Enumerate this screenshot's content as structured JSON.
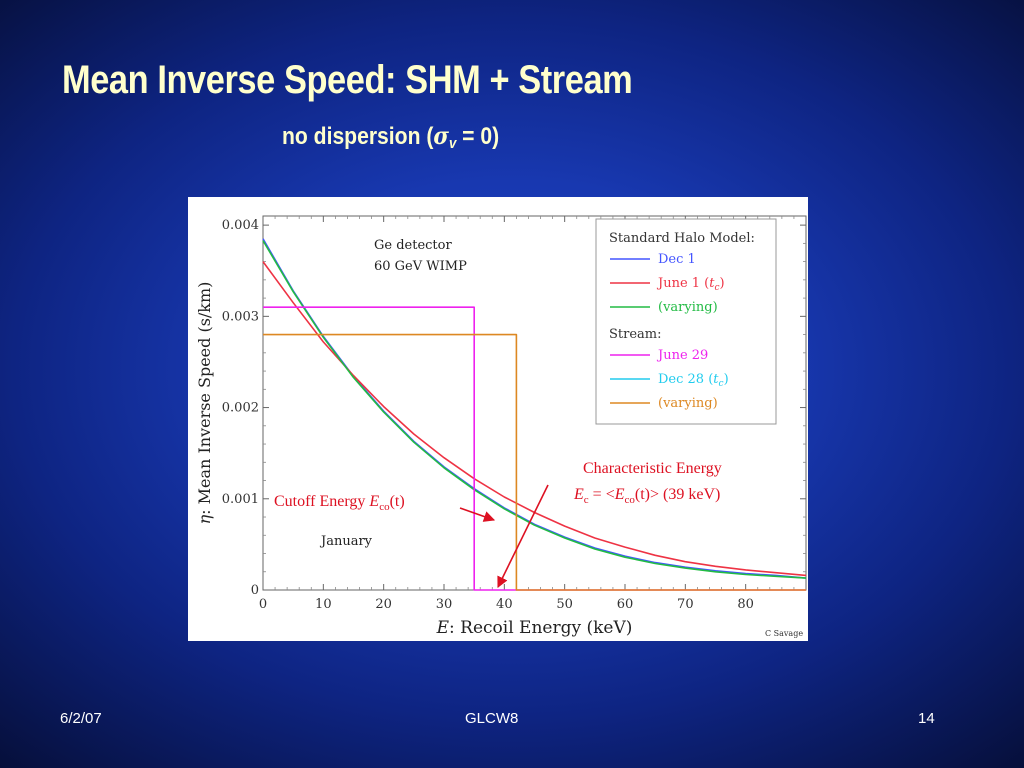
{
  "slide": {
    "title": "Mean Inverse Speed: SHM + Stream",
    "subtitle_prefix": "no dispersion (",
    "subtitle_sigma": "σ",
    "subtitle_sub": "v",
    "subtitle_suffix": " = 0)",
    "footer_date": "6/2/07",
    "footer_center": "GLCW8",
    "footer_page": "14"
  },
  "chart_data": {
    "type": "line",
    "xlabel_var": "E",
    "xlabel_text": ":  Recoil Energy (keV)",
    "ylabel_var": "η",
    "ylabel_text": ":  Mean Inverse Speed (s/km)",
    "xlim": [
      0,
      90
    ],
    "ylim": [
      0,
      0.0041
    ],
    "x_ticks": [
      "0",
      "10",
      "20",
      "30",
      "40",
      "50",
      "60",
      "70",
      "80"
    ],
    "y_ticks": [
      "0",
      "0.001",
      "0.002",
      "0.003",
      "0.004"
    ],
    "grid": false,
    "legend_position": "top-right",
    "legend": {
      "shm_heading": "Standard Halo Model:",
      "stream_heading": "Stream:",
      "entries": [
        {
          "group": "shm",
          "label": "Dec 1",
          "color": "#4455ff"
        },
        {
          "group": "shm",
          "label": "June 1 (",
          "tc": true,
          "color": "#ee3344"
        },
        {
          "group": "shm",
          "label": "(varying)",
          "color": "#22bb44"
        },
        {
          "group": "stream",
          "label": "June 29",
          "color": "#ee22ee"
        },
        {
          "group": "stream",
          "label": "Dec 28 (",
          "tc": true,
          "color": "#22ccee"
        },
        {
          "group": "stream",
          "label": "(varying)",
          "color": "#dd8822"
        }
      ]
    },
    "series": [
      {
        "name": "Dec 1",
        "color": "#4455ff",
        "x": [
          0,
          5,
          10,
          15,
          20,
          25,
          30,
          35,
          40,
          45,
          50,
          55,
          60,
          65,
          70,
          75,
          80,
          85,
          90
        ],
        "y": [
          0.00385,
          0.00328,
          0.00278,
          0.00234,
          0.00196,
          0.00163,
          0.00135,
          0.00111,
          0.0009,
          0.00072,
          0.00058,
          0.00046,
          0.00037,
          0.0003,
          0.00025,
          0.00021,
          0.00018,
          0.00016,
          0.00013
        ]
      },
      {
        "name": "June 1 (tc)",
        "color": "#ee3344",
        "x": [
          0,
          5,
          10,
          15,
          20,
          25,
          30,
          35,
          40,
          45,
          50,
          55,
          60,
          65,
          70,
          75,
          80,
          85,
          90
        ],
        "y": [
          0.0036,
          0.00315,
          0.00272,
          0.00235,
          0.00201,
          0.00171,
          0.00145,
          0.00122,
          0.00102,
          0.00085,
          0.0007,
          0.00057,
          0.00047,
          0.00038,
          0.00031,
          0.00026,
          0.00022,
          0.00019,
          0.00016
        ]
      },
      {
        "name": "(varying)",
        "color": "#22bb44",
        "x": [
          0,
          5,
          10,
          15,
          20,
          25,
          30,
          35,
          40,
          45,
          50,
          55,
          60,
          65,
          70,
          75,
          80,
          85,
          90
        ],
        "y": [
          0.00383,
          0.00327,
          0.00277,
          0.00233,
          0.00195,
          0.00162,
          0.00134,
          0.0011,
          0.00089,
          0.00071,
          0.00057,
          0.00045,
          0.00036,
          0.00029,
          0.00024,
          0.0002,
          0.00017,
          0.00015,
          0.00013
        ]
      },
      {
        "name": "June 29",
        "color": "#ee22ee",
        "x": [
          0,
          35,
          35,
          90
        ],
        "y": [
          0.0031,
          0.0031,
          0,
          0
        ]
      },
      {
        "name": "(varying)",
        "color": "#dd8822",
        "x": [
          0,
          42,
          42,
          90
        ],
        "y": [
          0.0028,
          0.0028,
          0,
          0
        ]
      }
    ],
    "annotations": {
      "detector_line1": "Ge detector",
      "detector_line2": "60 GeV WIMP",
      "month": "January",
      "cutoff_prefix": "Cutoff Energy ",
      "cutoff_var": "E",
      "cutoff_sub": "co",
      "cutoff_suffix": "(t)",
      "char_title": "Characteristic Energy",
      "char_var": "E",
      "char_sub": "c",
      "char_mid": " = <",
      "char_var2": "E",
      "char_sub2": "co",
      "char_suffix": "(t)>  (39 keV)",
      "credit": "C Savage"
    }
  }
}
